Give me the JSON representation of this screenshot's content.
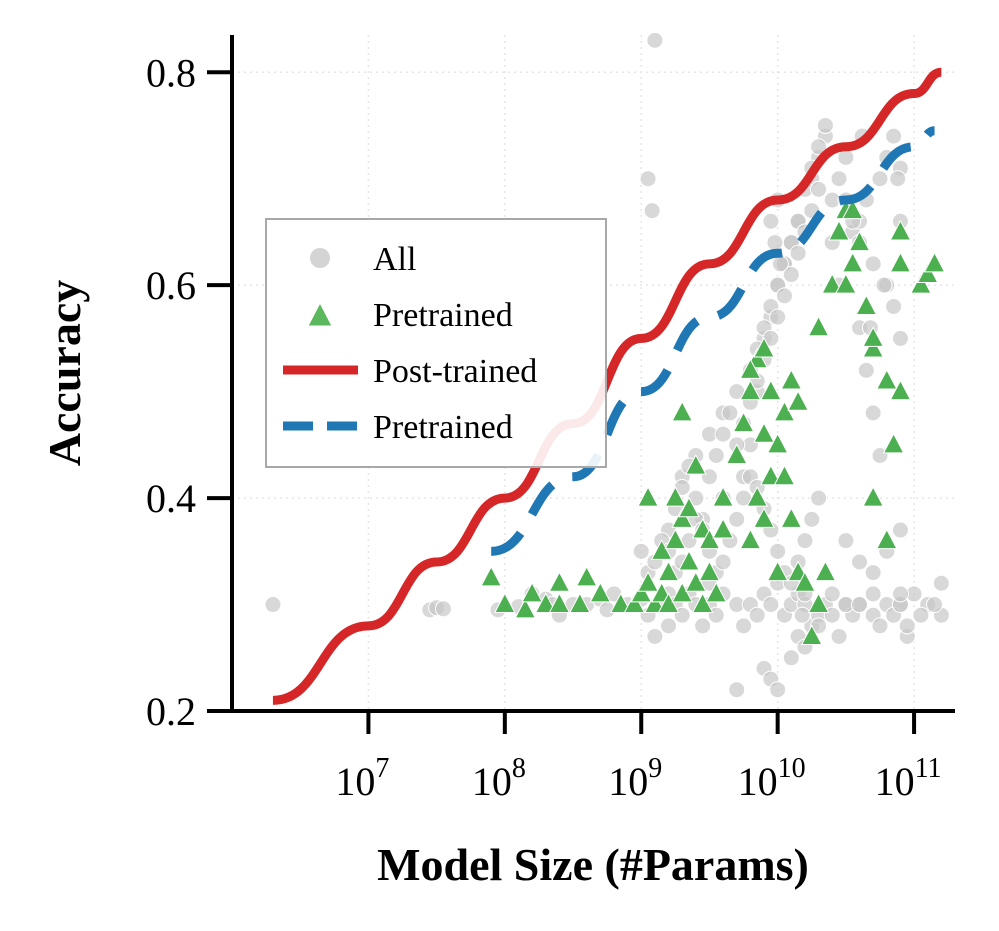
{
  "chart_data": {
    "type": "scatter",
    "xlabel": "Model Size (#Params)",
    "ylabel": "Accuracy",
    "x_scale": "log10",
    "xlim_log10": [
      6.0,
      11.3
    ],
    "ylim": [
      0.2,
      0.835
    ],
    "x_tick_labels": [
      {
        "base": "10",
        "exp": "7",
        "log10": 7
      },
      {
        "base": "10",
        "exp": "8",
        "log10": 8
      },
      {
        "base": "10",
        "exp": "9",
        "log10": 9
      },
      {
        "base": "10",
        "exp": "10",
        "log10": 10
      },
      {
        "base": "10",
        "exp": "11",
        "log10": 11
      }
    ],
    "y_ticks": [
      {
        "label": "0.2",
        "value": 0.2
      },
      {
        "label": "0.4",
        "value": 0.4
      },
      {
        "label": "0.6",
        "value": 0.6
      },
      {
        "label": "0.8",
        "value": 0.8
      }
    ],
    "grid": "dotted-light",
    "legend": {
      "placement": "center-left",
      "entries": [
        {
          "label": "All",
          "marker": "circle",
          "color": "#d0d0d0"
        },
        {
          "label": "Pretrained",
          "marker": "triangle",
          "color": "#4caf50"
        },
        {
          "label": "Post-trained",
          "marker": "solid-line",
          "color": "#d62728"
        },
        {
          "label": "Pretrained",
          "marker": "dashed-line",
          "color": "#1f77b4"
        }
      ]
    },
    "series": [
      {
        "name": "All",
        "kind": "scatter",
        "marker": "circle",
        "color": "#c8c8c8",
        "log10_x": [
          6.3,
          7.45,
          7.5,
          7.55,
          7.95,
          8.1,
          8.2,
          8.3,
          8.35,
          8.4,
          8.5,
          8.6,
          8.7,
          8.75,
          8.8,
          8.9,
          9.0,
          9.05,
          9.1,
          9.15,
          9.2,
          9.2,
          9.25,
          9.3,
          9.35,
          9.4,
          9.45,
          9.5,
          9.5,
          9.55,
          9.6,
          9.7,
          9.75,
          9.8,
          9.85,
          9.9,
          9.95,
          10.0,
          10.05,
          10.1,
          10.15,
          10.2,
          10.25,
          10.3,
          10.35,
          10.4,
          10.5,
          10.55,
          10.6,
          10.7,
          10.75,
          10.8,
          10.9,
          10.95,
          11.0,
          11.1,
          11.2,
          11.2,
          9.1,
          9.05,
          9.08,
          9.7,
          9.9,
          9.95,
          10.0,
          10.1,
          10.15,
          10.18,
          10.2,
          10.2,
          10.3,
          10.4,
          10.45,
          10.5,
          10.6,
          10.7,
          10.85,
          10.9,
          10.9,
          10.95,
          11.05,
          11.15,
          9.6,
          9.75,
          9.8,
          9.85,
          9.9,
          9.95,
          10.0,
          10.05,
          10.1,
          10.15,
          10.25,
          10.3,
          10.35,
          10.4,
          10.55,
          10.6,
          10.65,
          10.75,
          10.8,
          10.85,
          10.9,
          9.3,
          9.4,
          9.5,
          9.6,
          9.7,
          9.8,
          9.85,
          9.9,
          9.95,
          10.0,
          10.05,
          10.1,
          10.15,
          10.2,
          10.25,
          10.3,
          10.35,
          10.45,
          10.5,
          10.55,
          10.6,
          10.7,
          10.8,
          10.85,
          10.9,
          9.2,
          9.25,
          9.3,
          9.35,
          9.4,
          9.45,
          9.5,
          9.55,
          9.6,
          9.65,
          9.7,
          9.75,
          9.8,
          9.85,
          9.9,
          9.95,
          10.0,
          10.05,
          10.1,
          10.15,
          10.2,
          10.25,
          10.3,
          10.4,
          10.45,
          10.6,
          10.65,
          10.7,
          10.75,
          9.0,
          9.05,
          9.1,
          9.15,
          9.2,
          9.25,
          9.3,
          9.35,
          9.4,
          9.45,
          9.5,
          9.55,
          9.6,
          9.65,
          9.7,
          9.75,
          9.8,
          9.85,
          9.9,
          9.95,
          10.0,
          10.05,
          10.1,
          10.15,
          10.2,
          10.25,
          10.3,
          10.5,
          10.6,
          10.7,
          10.8,
          10.9,
          10.0,
          9.95,
          9.98,
          10.02,
          10.5,
          10.62,
          10.88,
          10.9,
          10.78,
          10.68
        ],
        "y": [
          0.3,
          0.295,
          0.297,
          0.296,
          0.295,
          0.298,
          0.31,
          0.305,
          0.3,
          0.29,
          0.3,
          0.3,
          0.305,
          0.295,
          0.31,
          0.3,
          0.305,
          0.29,
          0.27,
          0.3,
          0.28,
          0.31,
          0.3,
          0.29,
          0.31,
          0.3,
          0.28,
          0.3,
          0.32,
          0.29,
          0.31,
          0.3,
          0.28,
          0.3,
          0.29,
          0.31,
          0.3,
          0.32,
          0.29,
          0.3,
          0.31,
          0.3,
          0.28,
          0.29,
          0.3,
          0.31,
          0.3,
          0.29,
          0.3,
          0.29,
          0.28,
          0.3,
          0.3,
          0.27,
          0.31,
          0.3,
          0.29,
          0.32,
          0.83,
          0.7,
          0.67,
          0.22,
          0.24,
          0.23,
          0.22,
          0.25,
          0.27,
          0.29,
          0.31,
          0.26,
          0.28,
          0.29,
          0.27,
          0.3,
          0.3,
          0.31,
          0.29,
          0.3,
          0.31,
          0.28,
          0.29,
          0.3,
          0.4,
          0.42,
          0.45,
          0.5,
          0.55,
          0.57,
          0.6,
          0.62,
          0.64,
          0.66,
          0.7,
          0.72,
          0.74,
          0.68,
          0.65,
          0.66,
          0.68,
          0.7,
          0.72,
          0.74,
          0.71,
          0.42,
          0.44,
          0.46,
          0.48,
          0.5,
          0.52,
          0.54,
          0.56,
          0.58,
          0.6,
          0.62,
          0.64,
          0.66,
          0.69,
          0.71,
          0.73,
          0.75,
          0.7,
          0.68,
          0.66,
          0.64,
          0.62,
          0.6,
          0.58,
          0.55,
          0.37,
          0.39,
          0.41,
          0.43,
          0.4,
          0.38,
          0.42,
          0.44,
          0.46,
          0.48,
          0.45,
          0.47,
          0.49,
          0.51,
          0.53,
          0.55,
          0.57,
          0.59,
          0.61,
          0.63,
          0.65,
          0.67,
          0.69,
          0.64,
          0.6,
          0.56,
          0.52,
          0.48,
          0.44,
          0.35,
          0.33,
          0.34,
          0.36,
          0.35,
          0.33,
          0.34,
          0.36,
          0.38,
          0.37,
          0.35,
          0.33,
          0.34,
          0.36,
          0.38,
          0.4,
          0.42,
          0.41,
          0.39,
          0.37,
          0.35,
          0.33,
          0.32,
          0.34,
          0.36,
          0.38,
          0.4,
          0.36,
          0.34,
          0.33,
          0.35,
          0.37,
          0.68,
          0.66,
          0.64,
          0.62,
          0.72,
          0.74,
          0.7,
          0.66,
          0.6,
          0.56
        ]
      },
      {
        "name": "Pretrained",
        "kind": "scatter",
        "marker": "triangle",
        "color": "#4caf50",
        "log10_x": [
          7.9,
          8.0,
          8.15,
          8.2,
          8.3,
          8.4,
          8.4,
          8.55,
          8.6,
          8.7,
          8.85,
          8.95,
          9.0,
          9.05,
          9.1,
          9.15,
          9.15,
          9.2,
          9.2,
          9.25,
          9.3,
          9.3,
          9.35,
          9.4,
          9.45,
          9.45,
          9.5,
          9.5,
          9.55,
          9.6,
          9.7,
          9.75,
          9.8,
          9.85,
          9.9,
          9.9,
          9.95,
          10.0,
          10.05,
          10.1,
          10.15,
          10.2,
          10.25,
          10.3,
          10.35,
          10.4,
          10.45,
          10.5,
          10.55,
          10.6,
          10.65,
          10.7,
          10.8,
          10.9,
          10.9,
          11.05,
          11.1,
          11.15,
          9.25,
          9.35,
          9.05,
          9.3,
          9.4,
          9.6,
          9.8,
          9.8,
          9.9,
          10.0,
          10.05,
          10.1,
          9.85,
          9.95,
          10.15,
          10.3,
          10.5,
          10.55,
          10.7,
          10.85,
          10.9,
          10.7,
          10.8
        ],
        "y": [
          0.325,
          0.3,
          0.295,
          0.31,
          0.3,
          0.3,
          0.32,
          0.3,
          0.325,
          0.31,
          0.3,
          0.3,
          0.31,
          0.32,
          0.3,
          0.35,
          0.31,
          0.33,
          0.3,
          0.36,
          0.38,
          0.31,
          0.34,
          0.32,
          0.37,
          0.3,
          0.36,
          0.33,
          0.31,
          0.4,
          0.44,
          0.47,
          0.5,
          0.53,
          0.46,
          0.38,
          0.42,
          0.45,
          0.48,
          0.51,
          0.33,
          0.32,
          0.27,
          0.3,
          0.33,
          0.6,
          0.65,
          0.67,
          0.62,
          0.64,
          0.58,
          0.54,
          0.51,
          0.62,
          0.65,
          0.6,
          0.61,
          0.62,
          0.4,
          0.39,
          0.4,
          0.48,
          0.43,
          0.37,
          0.36,
          0.52,
          0.54,
          0.33,
          0.42,
          0.38,
          0.4,
          0.5,
          0.49,
          0.56,
          0.6,
          0.67,
          0.55,
          0.45,
          0.5,
          0.4,
          0.36
        ]
      },
      {
        "name": "Post-trained",
        "kind": "line",
        "style": "solid",
        "color": "#d62728",
        "log10_x": [
          6.3,
          7.0,
          7.5,
          8.0,
          8.5,
          9.0,
          9.5,
          10.0,
          10.5,
          11.0,
          11.2
        ],
        "y": [
          0.21,
          0.28,
          0.34,
          0.4,
          0.47,
          0.55,
          0.62,
          0.68,
          0.73,
          0.78,
          0.8
        ]
      },
      {
        "name": "Pretrained",
        "kind": "line",
        "style": "dashed",
        "color": "#1f77b4",
        "log10_x": [
          7.9,
          8.5,
          9.0,
          9.5,
          10.0,
          10.5,
          11.0,
          11.15
        ],
        "y": [
          0.35,
          0.42,
          0.5,
          0.57,
          0.63,
          0.68,
          0.73,
          0.745
        ]
      }
    ]
  }
}
